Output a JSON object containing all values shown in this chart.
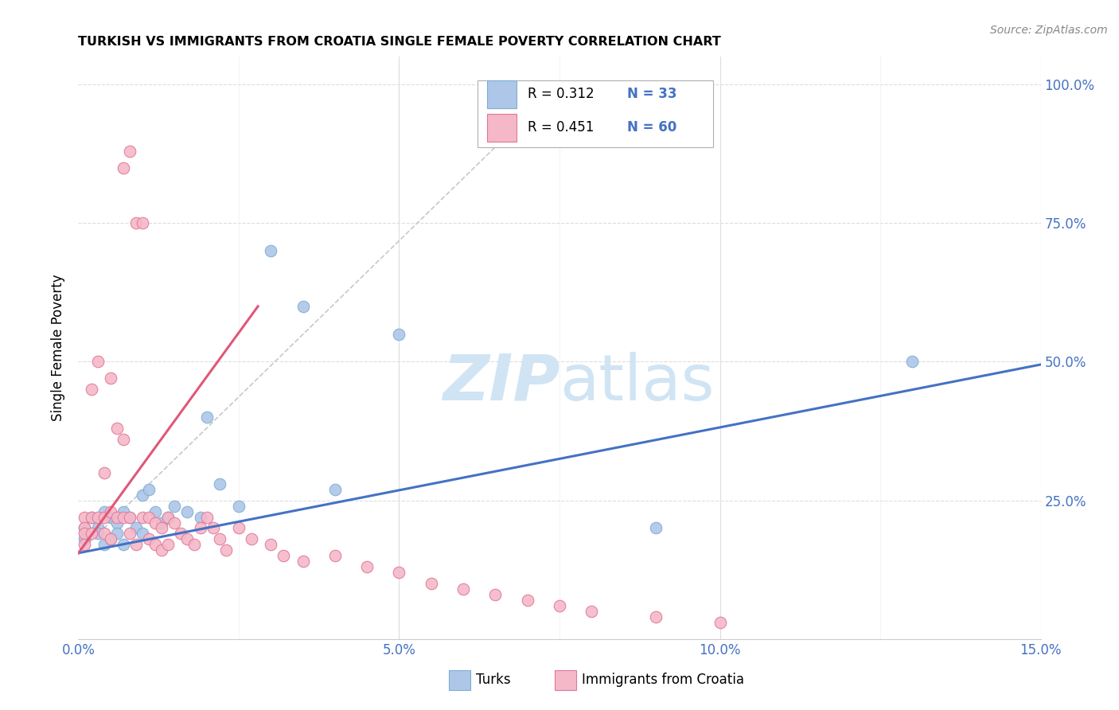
{
  "title": "TURKISH VS IMMIGRANTS FROM CROATIA SINGLE FEMALE POVERTY CORRELATION CHART",
  "source": "Source: ZipAtlas.com",
  "ylabel": "Single Female Poverty",
  "xlim": [
    0.0,
    0.15
  ],
  "ylim": [
    0.0,
    1.05
  ],
  "xticks": [
    0.0,
    0.05,
    0.1,
    0.15
  ],
  "xticklabels": [
    "0.0%",
    "5.0%",
    "10.0%",
    "15.0%"
  ],
  "yticks": [
    0.25,
    0.5,
    0.75,
    1.0
  ],
  "yticklabels_right": [
    "25.0%",
    "50.0%",
    "75.0%",
    "100.0%"
  ],
  "tick_color": "#4472c4",
  "legend_r1": "R = 0.312",
  "legend_n1": "N = 33",
  "legend_r2": "R = 0.451",
  "legend_n2": "N = 60",
  "turks_color": "#aec6e8",
  "turks_edge_color": "#7bafd4",
  "croatia_color": "#f5b8c8",
  "croatia_edge_color": "#e07898",
  "turks_line_color": "#4472c4",
  "croatia_line_color": "#e05878",
  "dashed_line_color": "#c8c8c8",
  "watermark_color": "#d0e4f4",
  "background_color": "#ffffff",
  "grid_color": "#dddddd",
  "turks_x": [
    0.001,
    0.001,
    0.002,
    0.003,
    0.003,
    0.004,
    0.004,
    0.005,
    0.005,
    0.006,
    0.006,
    0.007,
    0.007,
    0.008,
    0.009,
    0.01,
    0.01,
    0.011,
    0.012,
    0.013,
    0.014,
    0.015,
    0.017,
    0.019,
    0.02,
    0.022,
    0.025,
    0.03,
    0.035,
    0.04,
    0.05,
    0.09,
    0.13
  ],
  "turks_y": [
    0.2,
    0.18,
    0.22,
    0.2,
    0.19,
    0.23,
    0.17,
    0.22,
    0.18,
    0.21,
    0.19,
    0.23,
    0.17,
    0.22,
    0.2,
    0.26,
    0.19,
    0.27,
    0.23,
    0.21,
    0.22,
    0.24,
    0.23,
    0.22,
    0.4,
    0.28,
    0.24,
    0.7,
    0.6,
    0.27,
    0.55,
    0.2,
    0.5
  ],
  "croatia_x": [
    0.001,
    0.001,
    0.001,
    0.001,
    0.002,
    0.002,
    0.002,
    0.003,
    0.003,
    0.004,
    0.004,
    0.004,
    0.005,
    0.005,
    0.005,
    0.006,
    0.006,
    0.007,
    0.007,
    0.007,
    0.008,
    0.008,
    0.008,
    0.009,
    0.009,
    0.01,
    0.01,
    0.011,
    0.011,
    0.012,
    0.012,
    0.013,
    0.013,
    0.014,
    0.014,
    0.015,
    0.016,
    0.017,
    0.018,
    0.019,
    0.02,
    0.021,
    0.022,
    0.023,
    0.025,
    0.027,
    0.03,
    0.032,
    0.035,
    0.04,
    0.045,
    0.05,
    0.055,
    0.06,
    0.065,
    0.07,
    0.075,
    0.08,
    0.09,
    0.1
  ],
  "croatia_y": [
    0.22,
    0.2,
    0.19,
    0.17,
    0.45,
    0.22,
    0.19,
    0.5,
    0.22,
    0.3,
    0.22,
    0.19,
    0.47,
    0.23,
    0.18,
    0.38,
    0.22,
    0.85,
    0.36,
    0.22,
    0.88,
    0.22,
    0.19,
    0.75,
    0.17,
    0.75,
    0.22,
    0.22,
    0.18,
    0.21,
    0.17,
    0.2,
    0.16,
    0.22,
    0.17,
    0.21,
    0.19,
    0.18,
    0.17,
    0.2,
    0.22,
    0.2,
    0.18,
    0.16,
    0.2,
    0.18,
    0.17,
    0.15,
    0.14,
    0.15,
    0.13,
    0.12,
    0.1,
    0.09,
    0.08,
    0.07,
    0.06,
    0.05,
    0.04,
    0.03
  ],
  "turks_line_x": [
    0.0,
    0.15
  ],
  "turks_line_y": [
    0.155,
    0.495
  ],
  "croatia_line_x": [
    0.0,
    0.028
  ],
  "croatia_line_y": [
    0.155,
    0.6
  ],
  "dash_line_x": [
    0.0,
    0.075
  ],
  "dash_line_y": [
    0.155,
    1.0
  ]
}
